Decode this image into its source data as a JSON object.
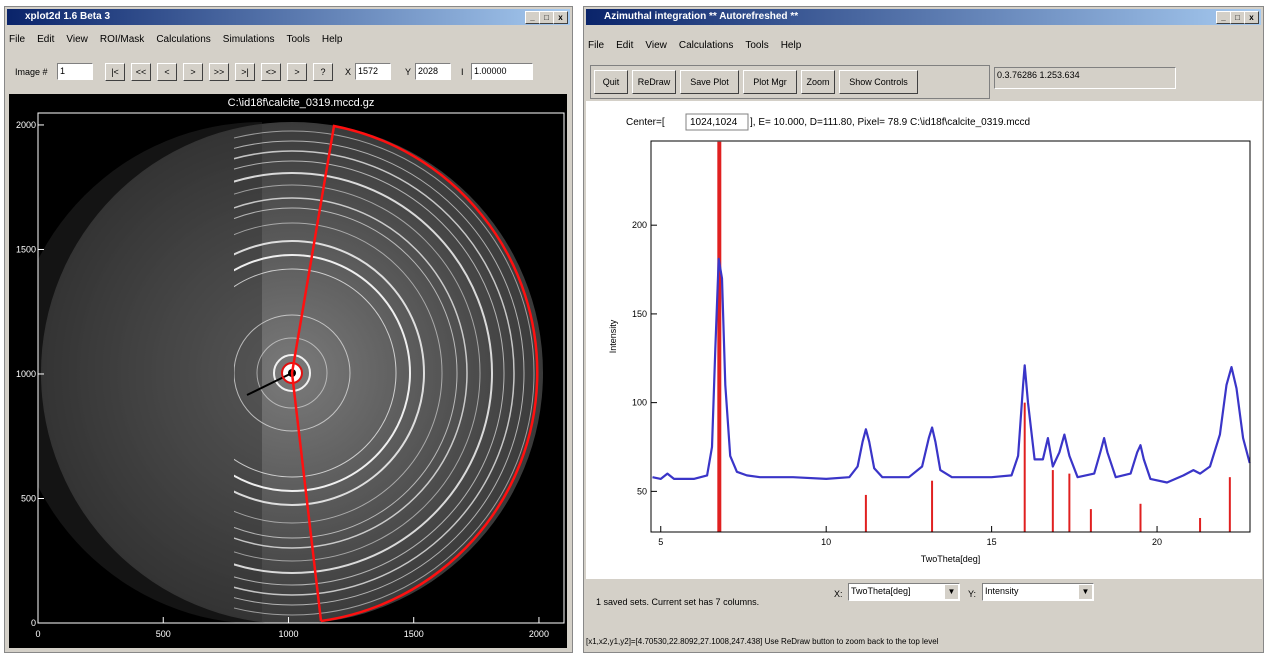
{
  "left_window": {
    "title": "xplot2d 1.6 Beta 3",
    "menu": [
      "File",
      "Edit",
      "View",
      "ROI/Mask",
      "Calculations",
      "Simulations",
      "Tools",
      "Help"
    ],
    "toolbar": {
      "image_label": "Image #",
      "image_value": "1",
      "buttons": [
        "|<",
        "<<",
        "<",
        ">",
        ">>",
        ">|",
        "<>",
        ">",
        "?"
      ],
      "x_label": "X",
      "x_value": "1572",
      "y_label": "Y",
      "y_value": "2028",
      "i_label": "I",
      "i_value": "1.00000"
    },
    "image_plot": {
      "title": "C:\\id18f\\calcite_0319.mccd.gz",
      "xlim": [
        0,
        2100
      ],
      "ylim": [
        0,
        2048
      ],
      "xticks": [
        0,
        500,
        1000,
        1500,
        2000
      ],
      "yticks": [
        0,
        500,
        1000,
        1500,
        2000
      ]
    }
  },
  "right_window": {
    "title": "Azimuthal integration ** Autorefreshed **",
    "menu": [
      "File",
      "Edit",
      "View",
      "Calculations",
      "Tools",
      "Help"
    ],
    "buttons": [
      "Quit",
      "ReDraw",
      "Save Plot",
      "Plot Mgr",
      "Zoom",
      "Show Controls"
    ],
    "readout": "0.3.76286 1.253.634",
    "plot": {
      "center_label": "Center=[",
      "center_value": "1024,1024",
      "info": "], E= 10.000, D=111.80, Pixel=  78.9  C:\\id18f\\calcite_0319.mccd",
      "xlabel": "TwoTheta[deg]",
      "ylabel": "Intensity",
      "xlim": [
        4.7053,
        22.8092
      ],
      "ylim": [
        27.1008,
        247.438
      ],
      "xticks": [
        5,
        10,
        15,
        20
      ],
      "yticks": [
        50,
        100,
        150,
        200
      ],
      "curve": {
        "color": "#3a35c8",
        "x": [
          4.75,
          5.0,
          5.2,
          5.4,
          6.0,
          6.4,
          6.55,
          6.65,
          6.75,
          6.85,
          6.95,
          7.1,
          7.3,
          7.6,
          8.0,
          9.0,
          10.0,
          10.7,
          10.95,
          11.1,
          11.2,
          11.3,
          11.45,
          11.7,
          12.5,
          12.9,
          13.1,
          13.2,
          13.3,
          13.45,
          13.8,
          15.0,
          15.6,
          15.8,
          15.95,
          16.0,
          16.1,
          16.3,
          16.55,
          16.7,
          16.85,
          17.05,
          17.2,
          17.35,
          17.6,
          18.1,
          18.3,
          18.4,
          18.5,
          18.75,
          19.2,
          19.4,
          19.5,
          19.6,
          19.8,
          20.3,
          20.8,
          21.1,
          21.3,
          21.6,
          21.9,
          22.1,
          22.25,
          22.4,
          22.6,
          22.8
        ],
        "y": [
          58,
          57,
          60,
          57,
          57,
          59,
          75,
          130,
          181,
          170,
          110,
          70,
          61,
          59,
          58,
          58,
          57,
          58,
          64,
          78,
          85,
          78,
          63,
          58,
          58,
          64,
          80,
          86,
          78,
          62,
          58,
          58,
          59,
          70,
          110,
          121,
          100,
          68,
          68,
          80,
          64,
          72,
          82,
          70,
          58,
          60,
          73,
          80,
          72,
          58,
          60,
          72,
          76,
          68,
          57,
          55,
          59,
          62,
          60,
          64,
          82,
          110,
          120,
          108,
          80,
          66
        ]
      },
      "reflections": {
        "color": "#e02020",
        "x": [
          6.77,
          11.2,
          13.2,
          16.0,
          16.85,
          17.35,
          18.0,
          19.5,
          21.3,
          22.2
        ],
        "top": [
          247,
          48,
          56,
          100,
          62,
          60,
          40,
          43,
          35,
          58
        ]
      }
    },
    "status_sets": "1 saved sets. Current set has 7 columns.",
    "x_select_label": "X:",
    "x_select": "TwoTheta[deg]",
    "y_select_label": "Y:",
    "y_select": "Intensity",
    "status": "[x1,x2,y1,y2]=[4.70530,22.8092,27.1008,247.438] Use ReDraw button to zoom back to the top level"
  }
}
